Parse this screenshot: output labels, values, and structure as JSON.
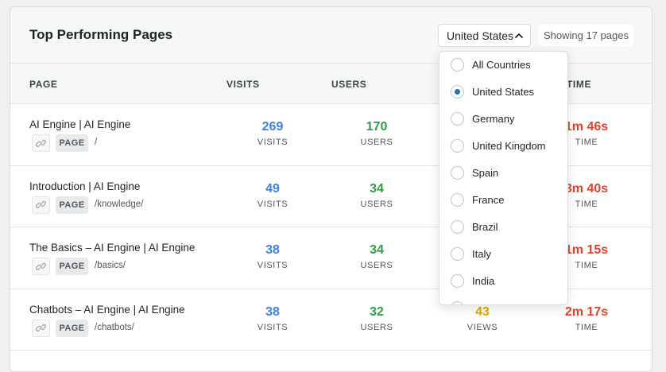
{
  "header": {
    "title": "Top Performing Pages",
    "country_selected": "United States",
    "showing": "Showing 17 pages"
  },
  "columns": [
    "PAGE",
    "VISITS",
    "USERS",
    "TIME"
  ],
  "rows": [
    {
      "title": "AI Engine | AI Engine",
      "badge": "PAGE",
      "path": "/",
      "visits": "269",
      "visits_label": "VISITS",
      "users": "170",
      "users_label": "USERS",
      "time": "1m 46s",
      "time_label": "TIME"
    },
    {
      "title": "Introduction | AI Engine",
      "badge": "PAGE",
      "path": "/knowledge/",
      "visits": "49",
      "visits_label": "VISITS",
      "users": "34",
      "users_label": "USERS",
      "time": "3m 40s",
      "time_label": "TIME"
    },
    {
      "title": "The Basics – AI Engine | AI Engine",
      "badge": "PAGE",
      "path": "/basics/",
      "visits": "38",
      "visits_label": "VISITS",
      "users": "34",
      "users_label": "USERS",
      "time": "1m 15s",
      "time_label": "TIME"
    },
    {
      "title": "Chatbots – AI Engine | AI Engine",
      "badge": "PAGE",
      "path": "/chatbots/",
      "visits": "38",
      "visits_label": "VISITS",
      "users": "32",
      "users_label": "USERS",
      "views": "43",
      "views_label": "VIEWS",
      "time": "2m 17s",
      "time_label": "TIME"
    }
  ],
  "dropdown": {
    "options": [
      "All Countries",
      "United States",
      "Germany",
      "United Kingdom",
      "Spain",
      "France",
      "Brazil",
      "Italy",
      "India"
    ],
    "selected_index": 1
  },
  "colors": {
    "visits": "#3b82e0",
    "users": "#2e9e49",
    "views": "#e0a800",
    "time": "#e0412a",
    "radio_selected": "#2271b1"
  },
  "icons": {
    "link": "link-icon",
    "select_chevron": "chevron-up-icon"
  }
}
